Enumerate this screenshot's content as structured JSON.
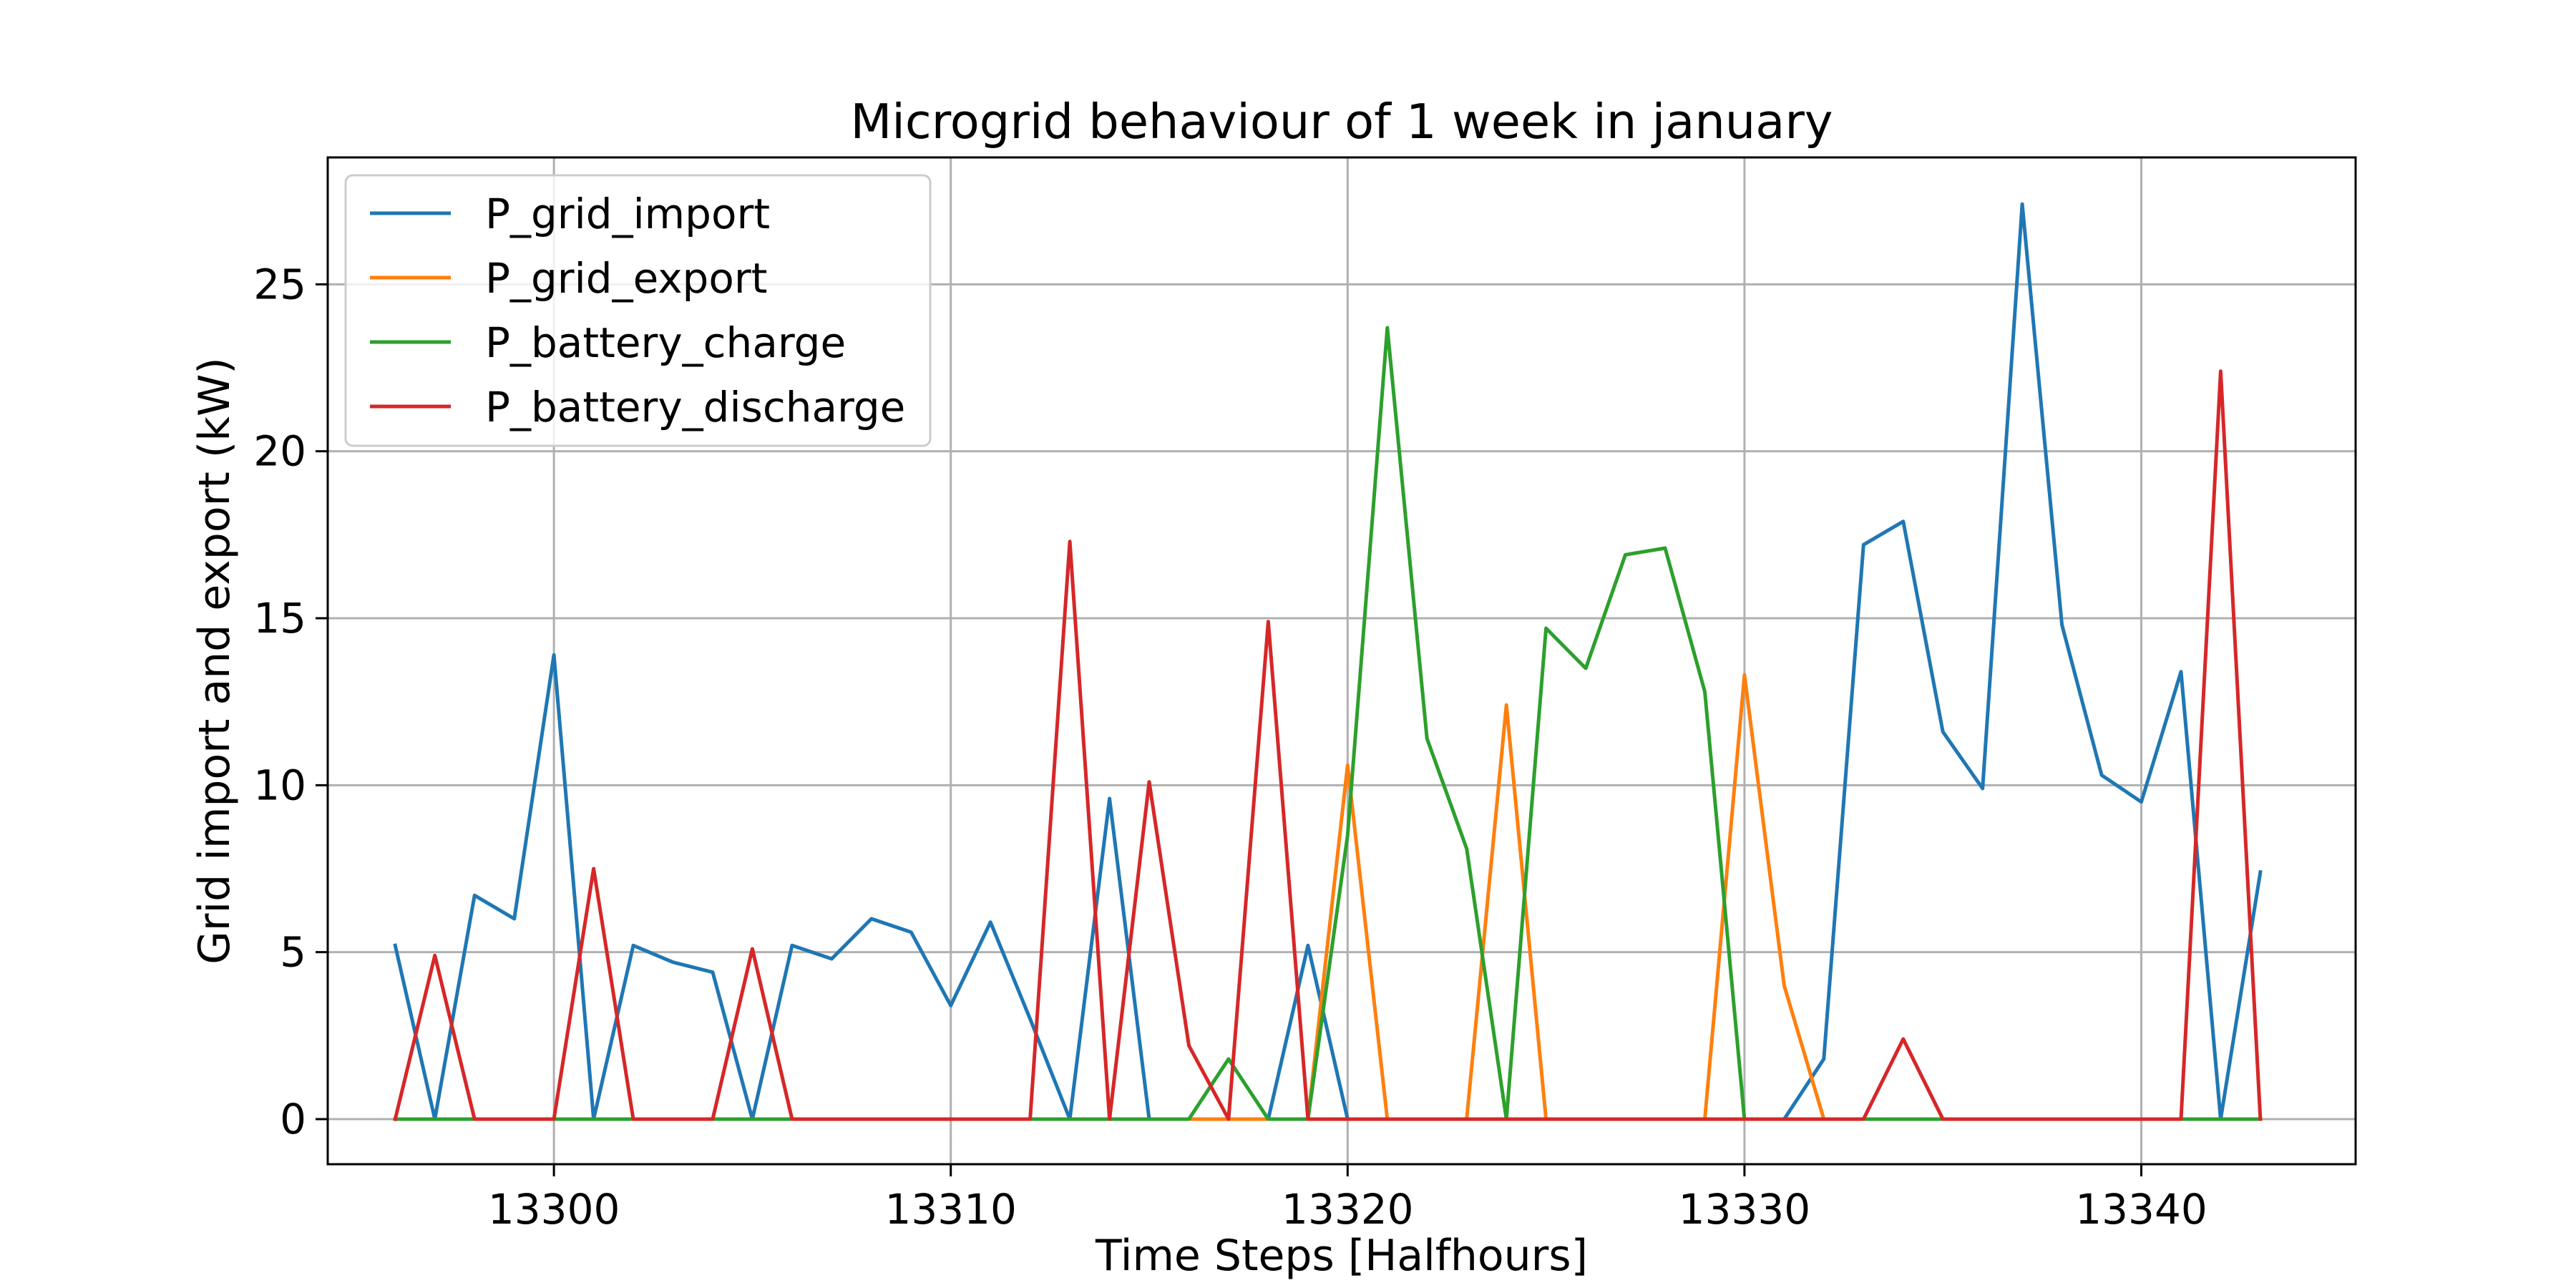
{
  "chart_data": {
    "type": "line",
    "title": "Microgrid behaviour of 1 week in january",
    "xlabel": "Time Steps [Halfhours]",
    "ylabel": "Grid import and export (kW)",
    "xlim": [
      13294.3,
      13345.4
    ],
    "ylim": [
      -1.35,
      28.8
    ],
    "xticks": [
      13300,
      13310,
      13320,
      13330,
      13340
    ],
    "yticks": [
      0,
      5,
      10,
      15,
      20,
      25
    ],
    "grid": true,
    "legend": "top-left",
    "x": [
      13296,
      13297,
      13298,
      13299,
      13300,
      13301,
      13302,
      13303,
      13304,
      13305,
      13306,
      13307,
      13308,
      13309,
      13310,
      13311,
      13312,
      13313,
      13314,
      13315,
      13316,
      13317,
      13318,
      13319,
      13320,
      13321,
      13322,
      13323,
      13324,
      13325,
      13326,
      13327,
      13328,
      13329,
      13330,
      13331,
      13332,
      13333,
      13334,
      13335,
      13336,
      13337,
      13338,
      13339,
      13340,
      13341,
      13342,
      13343
    ],
    "series": [
      {
        "name": "P_grid_import",
        "color": "#1f77b4",
        "values": [
          5.2,
          0,
          6.7,
          6.0,
          13.9,
          0,
          5.2,
          4.7,
          4.4,
          0,
          5.2,
          4.8,
          6.0,
          5.6,
          3.4,
          5.9,
          3.0,
          0,
          9.6,
          0,
          0,
          0,
          0,
          5.2,
          0,
          0,
          0,
          0,
          0,
          0,
          0,
          0,
          0,
          0,
          0,
          0,
          1.8,
          17.2,
          17.9,
          11.6,
          9.9,
          27.4,
          14.8,
          10.3,
          9.5,
          13.4,
          0,
          7.4
        ]
      },
      {
        "name": "P_grid_export",
        "color": "#ff7f0e",
        "values": [
          0,
          0,
          0,
          0,
          0,
          0,
          0,
          0,
          0,
          0,
          0,
          0,
          0,
          0,
          0,
          0,
          0,
          0,
          0,
          0,
          0,
          0,
          0,
          0,
          10.6,
          0,
          0,
          0,
          12.4,
          0,
          0,
          0,
          0,
          0,
          13.3,
          4.0,
          0,
          0,
          0,
          0,
          0,
          0,
          0,
          0,
          0,
          0,
          0,
          0
        ]
      },
      {
        "name": "P_battery_charge",
        "color": "#2ca02c",
        "values": [
          0,
          0,
          0,
          0,
          0,
          0,
          0,
          0,
          0,
          0,
          0,
          0,
          0,
          0,
          0,
          0,
          0,
          0,
          0,
          0,
          0,
          1.8,
          0,
          0,
          8.5,
          23.7,
          11.4,
          8.1,
          0,
          14.7,
          13.5,
          16.9,
          17.1,
          12.8,
          0,
          0,
          0,
          0,
          0,
          0,
          0,
          0,
          0,
          0,
          0,
          0,
          0,
          0
        ]
      },
      {
        "name": "P_battery_discharge",
        "color": "#d62728",
        "values": [
          0,
          4.9,
          0,
          0,
          0,
          7.5,
          0,
          0,
          0,
          5.1,
          0,
          0,
          0,
          0,
          0,
          0,
          0,
          17.3,
          0,
          10.1,
          2.2,
          0,
          14.9,
          0,
          0,
          0,
          0,
          0,
          0,
          0,
          0,
          0,
          0,
          0,
          0,
          0,
          0,
          0,
          2.4,
          0,
          0,
          0,
          0,
          0,
          0,
          0,
          22.4,
          0
        ]
      }
    ]
  }
}
